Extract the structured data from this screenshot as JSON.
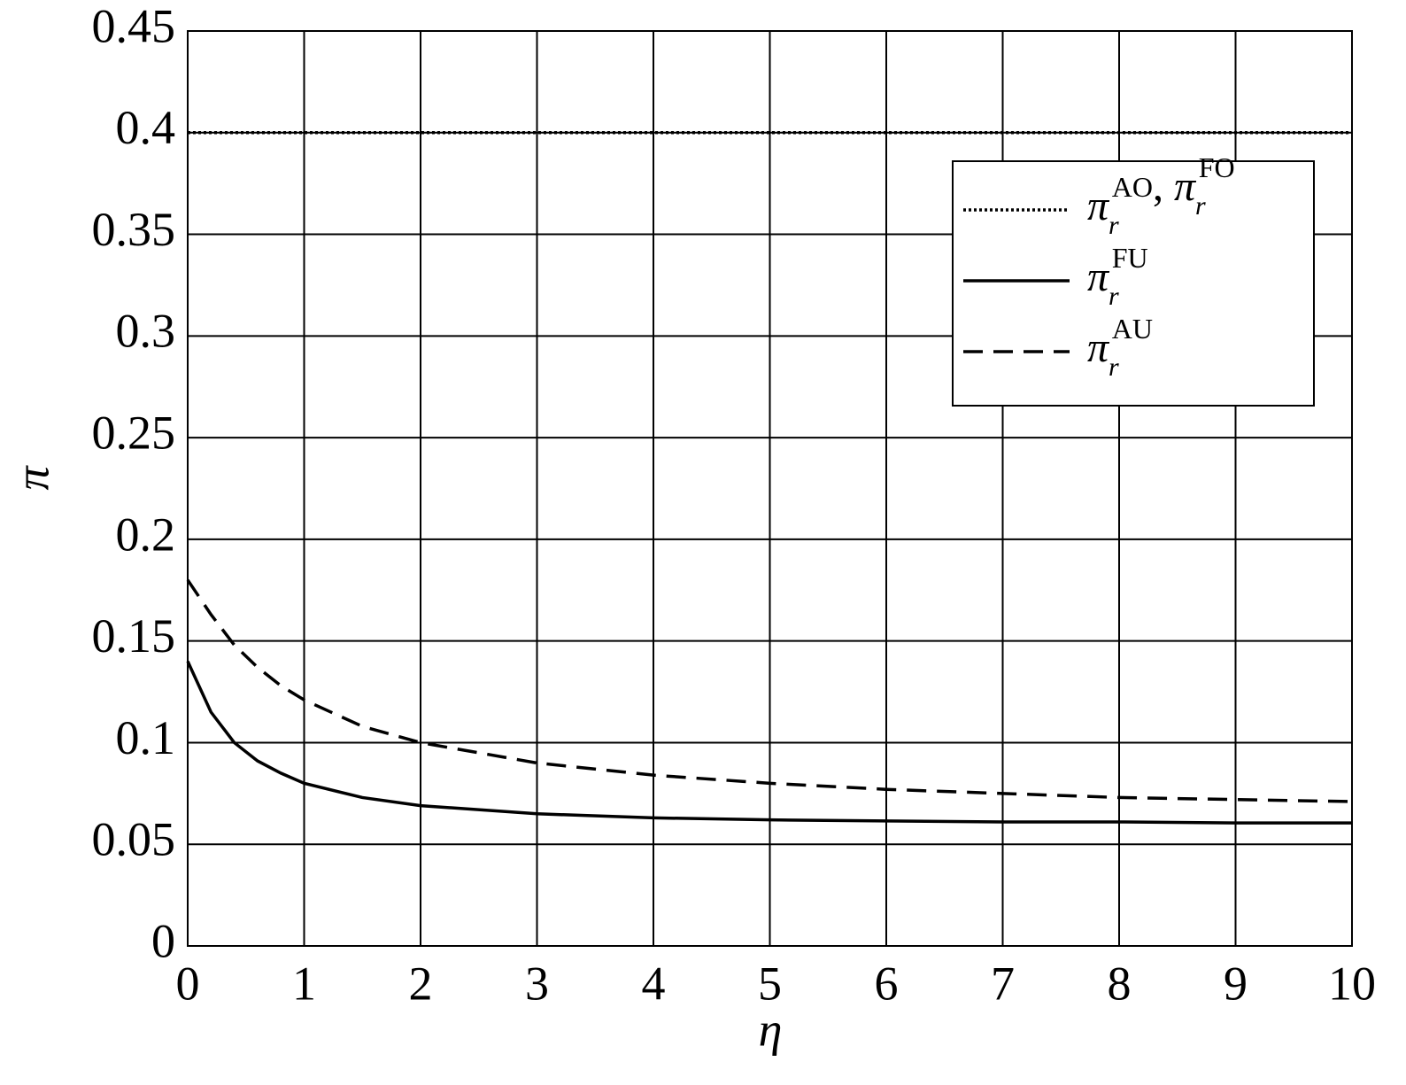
{
  "chart_data": {
    "type": "line",
    "x_label": "η",
    "y_label": "π",
    "x": [
      0,
      0.2,
      0.4,
      0.6,
      0.8,
      1,
      1.5,
      2,
      3,
      4,
      5,
      6,
      7,
      8,
      9,
      10
    ],
    "series": [
      {
        "name": "πrAO, πrFO",
        "color": "#000000",
        "style": "dotted",
        "values": [
          0.4,
          0.4,
          0.4,
          0.4,
          0.4,
          0.4,
          0.4,
          0.4,
          0.4,
          0.4,
          0.4,
          0.4,
          0.4,
          0.4,
          0.4,
          0.4
        ]
      },
      {
        "name": "πrFU",
        "color": "#000000",
        "style": "solid",
        "values": [
          0.14,
          0.115,
          0.1,
          0.091,
          0.085,
          0.08,
          0.073,
          0.069,
          0.065,
          0.063,
          0.062,
          0.0615,
          0.061,
          0.061,
          0.0605,
          0.0605
        ]
      },
      {
        "name": "πrAU",
        "color": "#000000",
        "style": "dashed",
        "values": [
          0.18,
          0.163,
          0.148,
          0.137,
          0.128,
          0.121,
          0.108,
          0.1,
          0.09,
          0.084,
          0.08,
          0.077,
          0.075,
          0.073,
          0.072,
          0.071
        ]
      }
    ],
    "xlim": [
      0,
      10
    ],
    "xticks": [
      0,
      1,
      2,
      3,
      4,
      5,
      6,
      7,
      8,
      9,
      10
    ],
    "ylim": [
      0,
      0.45
    ],
    "yticks": [
      0,
      0.05,
      0.1,
      0.15,
      0.2,
      0.25,
      0.3,
      0.35,
      0.4,
      0.45
    ],
    "grid": true,
    "legend": "upper right"
  }
}
